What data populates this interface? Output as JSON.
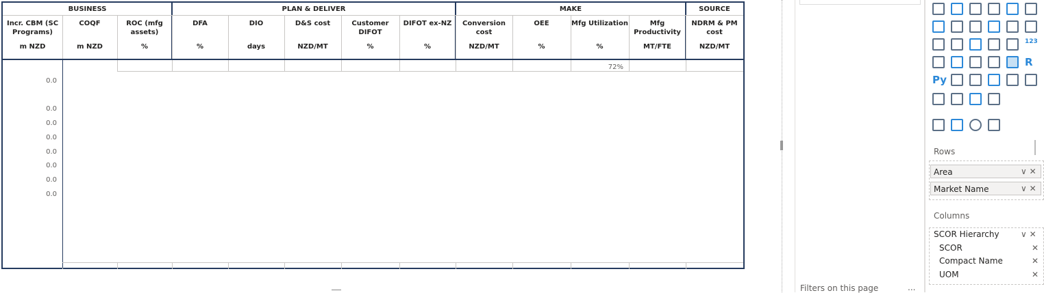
{
  "matrix": {
    "groups": [
      {
        "label": "BUSINESS",
        "columns": [
          {
            "name": "Incr. CBM (SC Programs)",
            "unit": "m NZD"
          },
          {
            "name": "COQF",
            "unit": "m NZD"
          },
          {
            "name": "ROC (mfg assets)",
            "unit": "%"
          }
        ]
      },
      {
        "label": "PLAN & DELIVER",
        "columns": [
          {
            "name": "DFA",
            "unit": "%"
          },
          {
            "name": "DIO",
            "unit": "days"
          },
          {
            "name": "D&S cost",
            "unit": "NZD/MT"
          },
          {
            "name": "Customer DIFOT",
            "unit": "%"
          },
          {
            "name": "DIFOT ex-NZ",
            "unit": "%"
          }
        ]
      },
      {
        "label": "MAKE",
        "columns": [
          {
            "name": "Conversion cost",
            "unit": "NZD/MT"
          },
          {
            "name": "OEE",
            "unit": "%"
          },
          {
            "name": "Mfg Utilization",
            "unit": "%"
          },
          {
            "name": "Mfg Productivity",
            "unit": "MT/FTE"
          }
        ]
      },
      {
        "label": "SOURCE",
        "columns": [
          {
            "name": "NDRM & PM cost",
            "unit": "NZD/MT"
          }
        ]
      }
    ],
    "rows": [
      [
        null,
        null,
        null,
        null,
        null,
        null,
        null,
        null,
        null,
        null,
        "72%",
        null,
        null
      ],
      [
        "0.0",
        null,
        null,
        null,
        null,
        null,
        null,
        null,
        null,
        null,
        null,
        null,
        null
      ],
      [
        null,
        null,
        null,
        null,
        null,
        null,
        null,
        null,
        null,
        null,
        null,
        null,
        null
      ],
      [
        "0.0",
        null,
        null,
        null,
        null,
        null,
        null,
        null,
        null,
        null,
        null,
        null,
        null
      ],
      [
        "0.0",
        null,
        null,
        null,
        null,
        null,
        null,
        null,
        null,
        null,
        null,
        null,
        null
      ],
      [
        "0.0",
        null,
        null,
        null,
        null,
        null,
        null,
        null,
        null,
        null,
        null,
        null,
        null
      ],
      [
        "0.0",
        null,
        null,
        null,
        null,
        null,
        null,
        null,
        null,
        null,
        null,
        null,
        null
      ],
      [
        "0.0",
        null,
        null,
        null,
        null,
        null,
        null,
        null,
        null,
        null,
        null,
        null,
        null
      ],
      [
        "0.0",
        null,
        null,
        null,
        null,
        null,
        null,
        null,
        null,
        null,
        null,
        null,
        null
      ],
      [
        "0.0",
        null,
        null,
        null,
        null,
        null,
        null,
        null,
        null,
        null,
        null,
        null,
        null
      ]
    ]
  },
  "visual_icon_labels": [
    "R",
    "Py",
    "123"
  ],
  "fields": {
    "rows_label": "Rows",
    "rows": [
      "Area",
      "Market Name"
    ],
    "columns_label": "Columns",
    "columns": [
      "SCOR Hierarchy",
      "SCOR",
      "Compact Name",
      "UOM"
    ]
  },
  "filters": {
    "label": "Filters on this page",
    "more": "..."
  }
}
